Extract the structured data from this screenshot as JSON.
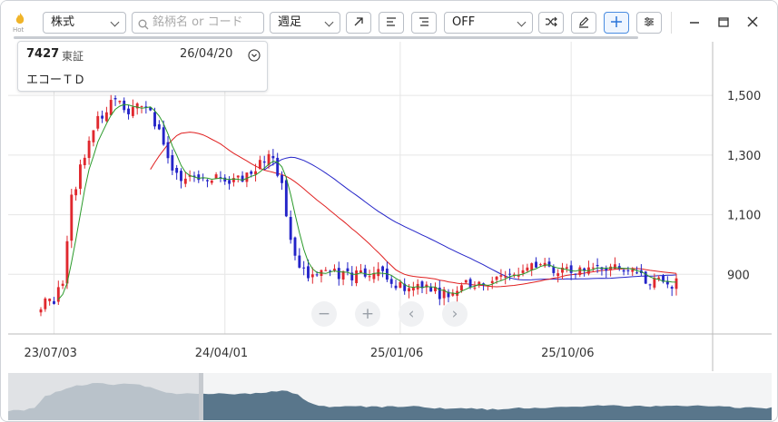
{
  "toolbar": {
    "hot_label": "Hot",
    "market_select": "株式",
    "search_placeholder": "銘柄名 or コード",
    "period_select": "週足",
    "indicator_select": "OFF"
  },
  "info_box": {
    "code": "7427",
    "exchange": "東証",
    "date": "26/04/20",
    "name": "エコーＴＤ"
  },
  "colors": {
    "up": "#e0282e",
    "down": "#2424c8",
    "ma_short": "#2a9a2a",
    "ma_mid": "#e02020",
    "ma_long": "#2424c8",
    "navigator_fill": "#3d5f78",
    "accent": "#4a8ce0"
  },
  "chart_controls": [
    "−",
    "+",
    "‹",
    "›"
  ],
  "chart_data": {
    "type": "candlestick",
    "y_ticks": [
      900,
      1100,
      1300,
      1500
    ],
    "y_tick_labels": [
      "900",
      "1,100",
      "1,300",
      "1,500"
    ],
    "x_tick_labels": [
      "23/07/03",
      "24/04/01",
      "25/01/06",
      "25/10/06"
    ],
    "ylim": [
      700,
      1680
    ],
    "grid": true,
    "weeks_total": 146,
    "x_tick_weeks": [
      3,
      42,
      82,
      121
    ],
    "anchor_closes": [
      [
        0,
        800
      ],
      [
        3,
        805
      ],
      [
        5,
        880
      ],
      [
        7,
        1150
      ],
      [
        10,
        1300
      ],
      [
        13,
        1420
      ],
      [
        17,
        1500
      ],
      [
        20,
        1430
      ],
      [
        22,
        1480
      ],
      [
        25,
        1450
      ],
      [
        27,
        1380
      ],
      [
        30,
        1230
      ],
      [
        33,
        1220
      ],
      [
        37,
        1210
      ],
      [
        41,
        1230
      ],
      [
        44,
        1210
      ],
      [
        48,
        1240
      ],
      [
        51,
        1290
      ],
      [
        53,
        1280
      ],
      [
        55,
        1200
      ],
      [
        57,
        1000
      ],
      [
        59,
        910
      ],
      [
        62,
        900
      ],
      [
        66,
        905
      ],
      [
        70,
        900
      ],
      [
        74,
        895
      ],
      [
        78,
        900
      ],
      [
        82,
        860
      ],
      [
        86,
        850
      ],
      [
        89,
        845
      ],
      [
        92,
        830
      ],
      [
        95,
        860
      ],
      [
        99,
        870
      ],
      [
        103,
        880
      ],
      [
        107,
        900
      ],
      [
        111,
        920
      ],
      [
        115,
        925
      ],
      [
        119,
        915
      ],
      [
        123,
        905
      ],
      [
        127,
        915
      ],
      [
        131,
        920
      ],
      [
        135,
        910
      ],
      [
        139,
        880
      ],
      [
        142,
        875
      ],
      [
        145,
        870
      ]
    ],
    "ma_short_weeks": 5,
    "ma_mid_weeks": 26,
    "ma_long_weeks": 52
  }
}
